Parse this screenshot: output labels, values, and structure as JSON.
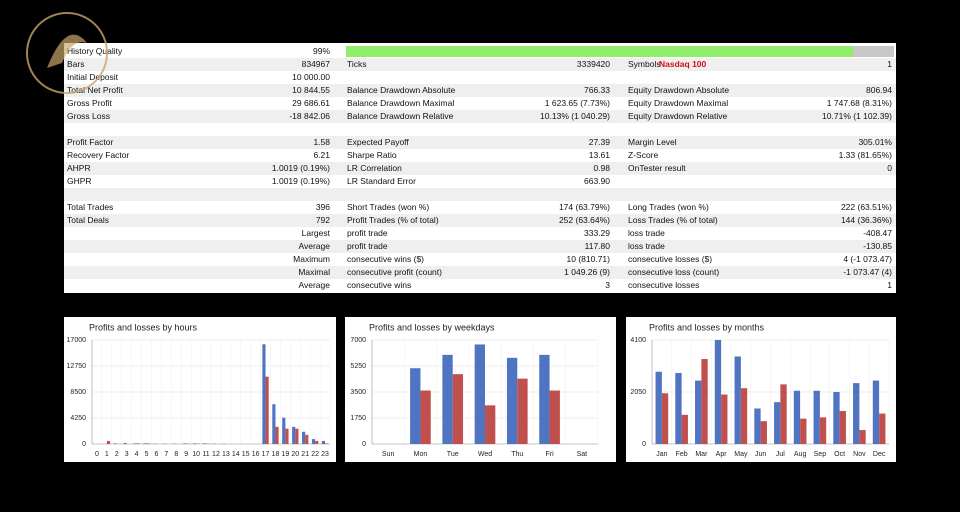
{
  "report": {
    "history_quality": {
      "label": "History Quality",
      "value": 99,
      "value_label": "99%"
    },
    "symbol_name": "Nasdaq 100",
    "rows": [
      [],
      [
        "Bars",
        "834967",
        "Ticks",
        "3339420",
        "Symbols",
        "1"
      ],
      [
        "Initial Deposit",
        "10 000.00",
        null,
        null,
        null,
        null
      ],
      [
        "Total Net Profit",
        "10 844.55",
        "Balance Drawdown Absolute",
        "766.33",
        "Equity Drawdown Absolute",
        "806.94"
      ],
      [
        "Gross Profit",
        "29 686.61",
        "Balance Drawdown Maximal",
        "1 623.65 (7.73%)",
        "Equity Drawdown Maximal",
        "1 747.68 (8.31%)"
      ],
      [
        "Gross Loss",
        "-18 842.06",
        "Balance Drawdown Relative",
        "10.13% (1 040.29)",
        "Equity Drawdown Relative",
        "10.71% (1 102.39)"
      ],
      [],
      [
        "Profit Factor",
        "1.58",
        "Expected Payoff",
        "27.39",
        "Margin Level",
        "305.01%"
      ],
      [
        "Recovery Factor",
        "6.21",
        "Sharpe Ratio",
        "13.61",
        "Z-Score",
        "1.33 (81.65%)"
      ],
      [
        "AHPR",
        "1.0019 (0.19%)",
        "LR Correlation",
        "0.98",
        "OnTester result",
        "0"
      ],
      [
        "GHPR",
        "1.0019 (0.19%)",
        "LR Standard Error",
        "663.90",
        null,
        null
      ],
      [],
      [
        "Total Trades",
        "396",
        "Short Trades (won %)",
        "174 (63.79%)",
        "Long Trades (won %)",
        "222 (63.51%)"
      ],
      [
        "Total Deals",
        "792",
        "Profit Trades (% of total)",
        "252 (63.64%)",
        "Loss Trades (% of total)",
        "144 (36.36%)"
      ],
      [
        null,
        "Largest",
        "profit trade",
        "333.29",
        "loss trade",
        "-408.47"
      ],
      [
        null,
        "Average",
        "profit trade",
        "117.80",
        "loss trade",
        "-130.85"
      ],
      [
        null,
        "Maximum",
        "consecutive wins ($)",
        "10 (810.71)",
        "consecutive losses ($)",
        "4 (-1 073.47)"
      ],
      [
        null,
        "Maximal",
        "consecutive profit (count)",
        "1 049.26 (9)",
        "consecutive loss (count)",
        "-1 073.47 (4)"
      ],
      [
        null,
        "Average",
        "consecutive wins",
        "3",
        "consecutive losses",
        "1"
      ]
    ]
  },
  "chart_data": [
    {
      "type": "bar",
      "title": "Profits and losses by hours",
      "categories": [
        "0",
        "1",
        "2",
        "3",
        "4",
        "5",
        "6",
        "7",
        "8",
        "9",
        "10",
        "11",
        "12",
        "13",
        "14",
        "15",
        "16",
        "17",
        "18",
        "19",
        "20",
        "21",
        "22",
        "23"
      ],
      "series": [
        {
          "color": "#4f74c2",
          "values": [
            0,
            0,
            100,
            150,
            100,
            100,
            50,
            50,
            50,
            100,
            100,
            100,
            50,
            50,
            0,
            0,
            0,
            16300,
            6500,
            4300,
            2800,
            2000,
            800,
            500
          ]
        },
        {
          "color": "#c0504d",
          "values": [
            0,
            500,
            0,
            0,
            100,
            100,
            0,
            0,
            0,
            50,
            50,
            50,
            0,
            0,
            0,
            0,
            0,
            11000,
            2800,
            2500,
            2500,
            1500,
            500,
            100
          ]
        }
      ],
      "ylim": [
        0,
        17000
      ],
      "yticks": [
        0,
        4250,
        8500,
        12750,
        17000
      ],
      "grid": true
    },
    {
      "type": "bar",
      "title": "Profits and losses by weekdays",
      "categories": [
        "Sun",
        "Mon",
        "Tue",
        "Wed",
        "Thu",
        "Fri",
        "Sat"
      ],
      "series": [
        {
          "color": "#4f74c2",
          "values": [
            0,
            5100,
            6000,
            6700,
            5800,
            6000,
            0
          ]
        },
        {
          "color": "#c0504d",
          "values": [
            0,
            3600,
            4700,
            2600,
            4400,
            3600,
            0
          ]
        }
      ],
      "ylim": [
        0,
        7000
      ],
      "yticks": [
        0,
        1750,
        3500,
        5250,
        7000
      ],
      "grid": true
    },
    {
      "type": "bar",
      "title": "Profits and losses by months",
      "categories": [
        "Jan",
        "Feb",
        "Mar",
        "Apr",
        "May",
        "Jun",
        "Jul",
        "Aug",
        "Sep",
        "Oct",
        "Nov",
        "Dec"
      ],
      "series": [
        {
          "color": "#4f74c2",
          "values": [
            2850,
            2800,
            2500,
            4100,
            3450,
            1400,
            1650,
            2100,
            2100,
            2050,
            2400,
            2500
          ]
        },
        {
          "color": "#c0504d",
          "values": [
            2000,
            1150,
            3350,
            1950,
            2200,
            900,
            2350,
            1000,
            1050,
            1300,
            550,
            1200
          ]
        }
      ],
      "ylim": [
        0,
        4100
      ],
      "yticks": [
        0,
        2050,
        4100
      ],
      "grid": true
    }
  ]
}
